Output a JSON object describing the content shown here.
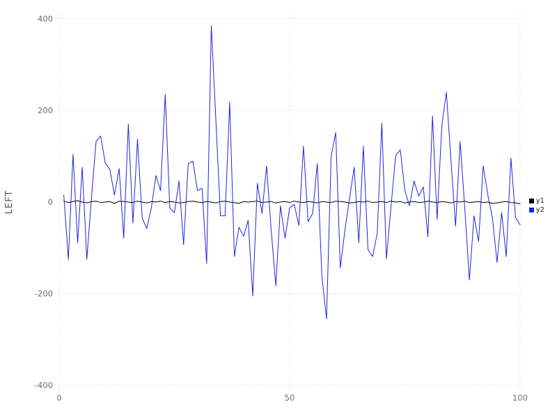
{
  "chart_data": {
    "type": "line",
    "title": "",
    "xlabel": "",
    "ylabel": "LEFT",
    "xlim": [
      0,
      100
    ],
    "ylim": [
      -400,
      400
    ],
    "x_ticks": [
      0,
      50,
      100
    ],
    "y_ticks": [
      400,
      200,
      0,
      -200,
      -400
    ],
    "grid": "dotted",
    "legend_position": "right-middle-outside",
    "x": [
      1,
      2,
      3,
      4,
      5,
      6,
      7,
      8,
      9,
      10,
      11,
      12,
      13,
      14,
      15,
      16,
      17,
      18,
      19,
      20,
      21,
      22,
      23,
      24,
      25,
      26,
      27,
      28,
      29,
      30,
      31,
      32,
      33,
      34,
      35,
      36,
      37,
      38,
      39,
      40,
      41,
      42,
      43,
      44,
      45,
      46,
      47,
      48,
      49,
      50,
      51,
      52,
      53,
      54,
      55,
      56,
      57,
      58,
      59,
      60,
      61,
      62,
      63,
      64,
      65,
      66,
      67,
      68,
      69,
      70,
      71,
      72,
      73,
      74,
      75,
      76,
      77,
      78,
      79,
      80,
      81,
      82,
      83,
      84,
      85,
      86,
      87,
      88,
      89,
      90,
      91,
      92,
      93,
      94,
      95,
      96,
      97,
      98,
      99,
      100
    ],
    "series": [
      {
        "name": "y1",
        "color": "#000000",
        "values": [
          2,
          -1,
          1,
          3,
          0,
          -2,
          1,
          2,
          -1,
          0,
          1,
          -3,
          2,
          1,
          0,
          -1,
          2,
          0,
          -2,
          1,
          0,
          2,
          -1,
          1,
          0,
          -2,
          -1,
          1,
          2,
          0,
          -1,
          1,
          0,
          -2,
          1,
          2,
          0,
          -1,
          -3,
          1,
          0,
          1,
          2,
          -1,
          0,
          1,
          -2,
          0,
          1,
          -1,
          2,
          0,
          -1,
          1,
          0,
          -2,
          1,
          0,
          -1,
          2,
          1,
          0,
          -2,
          -1,
          1,
          0,
          2,
          -1,
          0,
          1,
          -1,
          2,
          0,
          1,
          -2,
          0,
          1,
          -1,
          0,
          2,
          0,
          -1,
          1,
          0,
          -2,
          1,
          0,
          2,
          -1,
          0,
          1,
          -1,
          0,
          -3,
          -2,
          0,
          1,
          -1,
          -2,
          -4
        ]
      },
      {
        "name": "y2",
        "color": "#2222dd",
        "values": [
          15,
          -125,
          104,
          -89,
          76,
          -125,
          8,
          132,
          144,
          85,
          71,
          15,
          73,
          -79,
          170,
          -46,
          137,
          -35,
          -58,
          -12,
          58,
          25,
          235,
          -13,
          -23,
          46,
          -93,
          84,
          89,
          25,
          30,
          -134,
          385,
          177,
          -30,
          -30,
          218,
          -119,
          -55,
          -75,
          -40,
          -205,
          41,
          -25,
          79,
          -61,
          -183,
          -8,
          -79,
          -13,
          -5,
          -51,
          122,
          -43,
          -25,
          84,
          -162,
          -255,
          100,
          152,
          -144,
          -61,
          8,
          76,
          -89,
          122,
          -104,
          -119,
          -68,
          172,
          -124,
          -10,
          101,
          114,
          25,
          -8,
          46,
          13,
          33,
          -76,
          188,
          -38,
          165,
          240,
          91,
          -53,
          132,
          -15,
          -170,
          -30,
          -86,
          79,
          15,
          -35,
          -132,
          -23,
          -119,
          96,
          -33,
          -50
        ]
      }
    ]
  },
  "axis": {
    "y_label": "LEFT",
    "y_tick_labels": [
      "400",
      "200",
      "0",
      "-200",
      "-400"
    ],
    "x_tick_labels": [
      "0",
      "50",
      "100"
    ]
  },
  "legend": {
    "items": [
      {
        "label": "y1",
        "color": "#000000"
      },
      {
        "label": "y2",
        "color": "#2222dd"
      }
    ]
  },
  "colors": {
    "background": "#ffffff",
    "grid": "#d9d9de",
    "tick_text": "#6e6e78",
    "series_y1": "#000000",
    "series_y2": "#2222dd"
  }
}
